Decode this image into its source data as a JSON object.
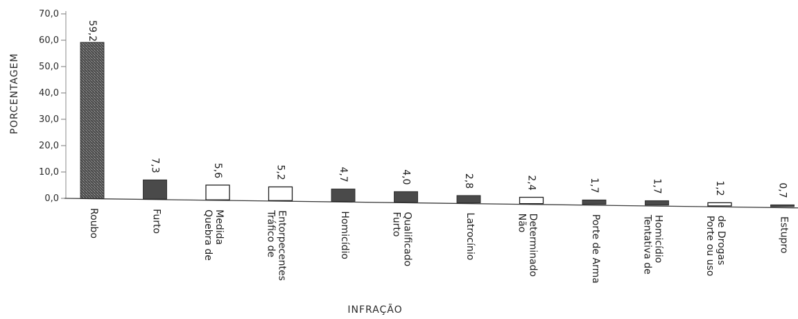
{
  "chart_data": {
    "type": "bar",
    "title": "",
    "xlabel": "INFRAÇÃO",
    "ylabel": "PORCENTAGEM",
    "ylim": [
      0,
      70
    ],
    "yticks": [
      "0,0",
      "10,0",
      "20,0",
      "30,0",
      "40,0",
      "50,0",
      "60,0",
      "70,0"
    ],
    "grid": false,
    "categories": [
      [
        "Roubo"
      ],
      [
        "Furto"
      ],
      [
        "Quebra de",
        "Medida"
      ],
      [
        "Tráfico de",
        "Entorpecentes"
      ],
      [
        "Homicídio"
      ],
      [
        "Furto",
        "Qualificado"
      ],
      [
        "Latrocínio"
      ],
      [
        "Não",
        "Determinado"
      ],
      [
        "Porte de Arma"
      ],
      [
        "Tentativa de",
        "Homicídio"
      ],
      [
        "Porte ou uso",
        "de Drogas"
      ],
      [
        "Estupro"
      ]
    ],
    "values": [
      59.2,
      7.3,
      5.6,
      5.2,
      4.7,
      4.0,
      2.8,
      2.4,
      1.7,
      1.7,
      1.2,
      0.7
    ],
    "value_labels": [
      "59,2",
      "7,3",
      "5,6",
      "5,2",
      "4,7",
      "4,0",
      "2,8",
      "2,4",
      "1,7",
      "1,7",
      "1,2",
      "0,7"
    ],
    "bar_styles": [
      "dark",
      "dark",
      "hollow",
      "hollow",
      "dark",
      "dark",
      "dark",
      "hollow",
      "dark",
      "dark",
      "hollow",
      "dark"
    ],
    "colors": {
      "dark": "#4a4a4a",
      "hollow": "#ffffff",
      "ink": "#1e1e1e"
    }
  }
}
